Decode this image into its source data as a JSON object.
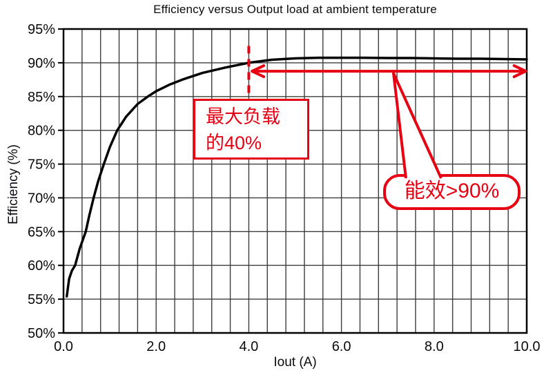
{
  "chart_data": {
    "type": "line",
    "title": "Efficiency versus Output load at ambient temperature",
    "xlabel": "Iout (A)",
    "ylabel": "Efficiency (%)",
    "xlim": [
      0,
      10
    ],
    "ylim": [
      50,
      95
    ],
    "x_tick_labels": [
      "0.0",
      "2.0",
      "4.0",
      "6.0",
      "8.0",
      "10.0"
    ],
    "x_tick_values": [
      0,
      2,
      4,
      6,
      8,
      10
    ],
    "y_tick_labels": [
      "95%",
      "90%",
      "85%",
      "80%",
      "75%",
      "70%",
      "65%",
      "60%",
      "55%",
      "50%"
    ],
    "y_tick_values": [
      95,
      90,
      85,
      80,
      75,
      70,
      65,
      60,
      55,
      50
    ],
    "grid": {
      "vertical_minor_step": 0.4,
      "horizontal_major_step": 5,
      "color": "#3c3c3c"
    },
    "legend": null,
    "series": [
      {
        "name": "Efficiency",
        "color": "#000000",
        "points": [
          [
            0.07,
            55.4
          ],
          [
            0.12,
            58.0
          ],
          [
            0.18,
            59.2
          ],
          [
            0.25,
            60.0
          ],
          [
            0.35,
            62.5
          ],
          [
            0.48,
            65.0
          ],
          [
            0.56,
            67.5
          ],
          [
            0.65,
            70.0
          ],
          [
            0.75,
            72.5
          ],
          [
            0.87,
            75.0
          ],
          [
            1.0,
            77.5
          ],
          [
            1.16,
            80.0
          ],
          [
            1.35,
            82.0
          ],
          [
            1.6,
            83.9
          ],
          [
            1.82,
            85.0
          ],
          [
            2.0,
            85.8
          ],
          [
            2.3,
            86.8
          ],
          [
            2.6,
            87.6
          ],
          [
            3.0,
            88.5
          ],
          [
            3.5,
            89.3
          ],
          [
            4.0,
            90.0
          ],
          [
            4.5,
            90.45
          ],
          [
            5.0,
            90.65
          ],
          [
            5.5,
            90.75
          ],
          [
            6.0,
            90.75
          ],
          [
            6.5,
            90.75
          ],
          [
            7.0,
            90.7
          ],
          [
            7.5,
            90.7
          ],
          [
            8.0,
            90.65
          ],
          [
            8.5,
            90.6
          ],
          [
            9.0,
            90.6
          ],
          [
            9.5,
            90.55
          ],
          [
            10.0,
            90.5
          ]
        ]
      }
    ]
  },
  "annotations": {
    "accent_color": "#e60012",
    "load_label": {
      "line1": "最大负载",
      "line2": "的40%"
    },
    "callout": {
      "text": "能效>90%"
    },
    "dashed_line": {
      "x": 4.0,
      "eff_from": 85.5,
      "eff_to": 92.5
    },
    "range_arrow": {
      "from_x": 4.07,
      "to_x": 9.98,
      "eff": 88.75
    }
  }
}
